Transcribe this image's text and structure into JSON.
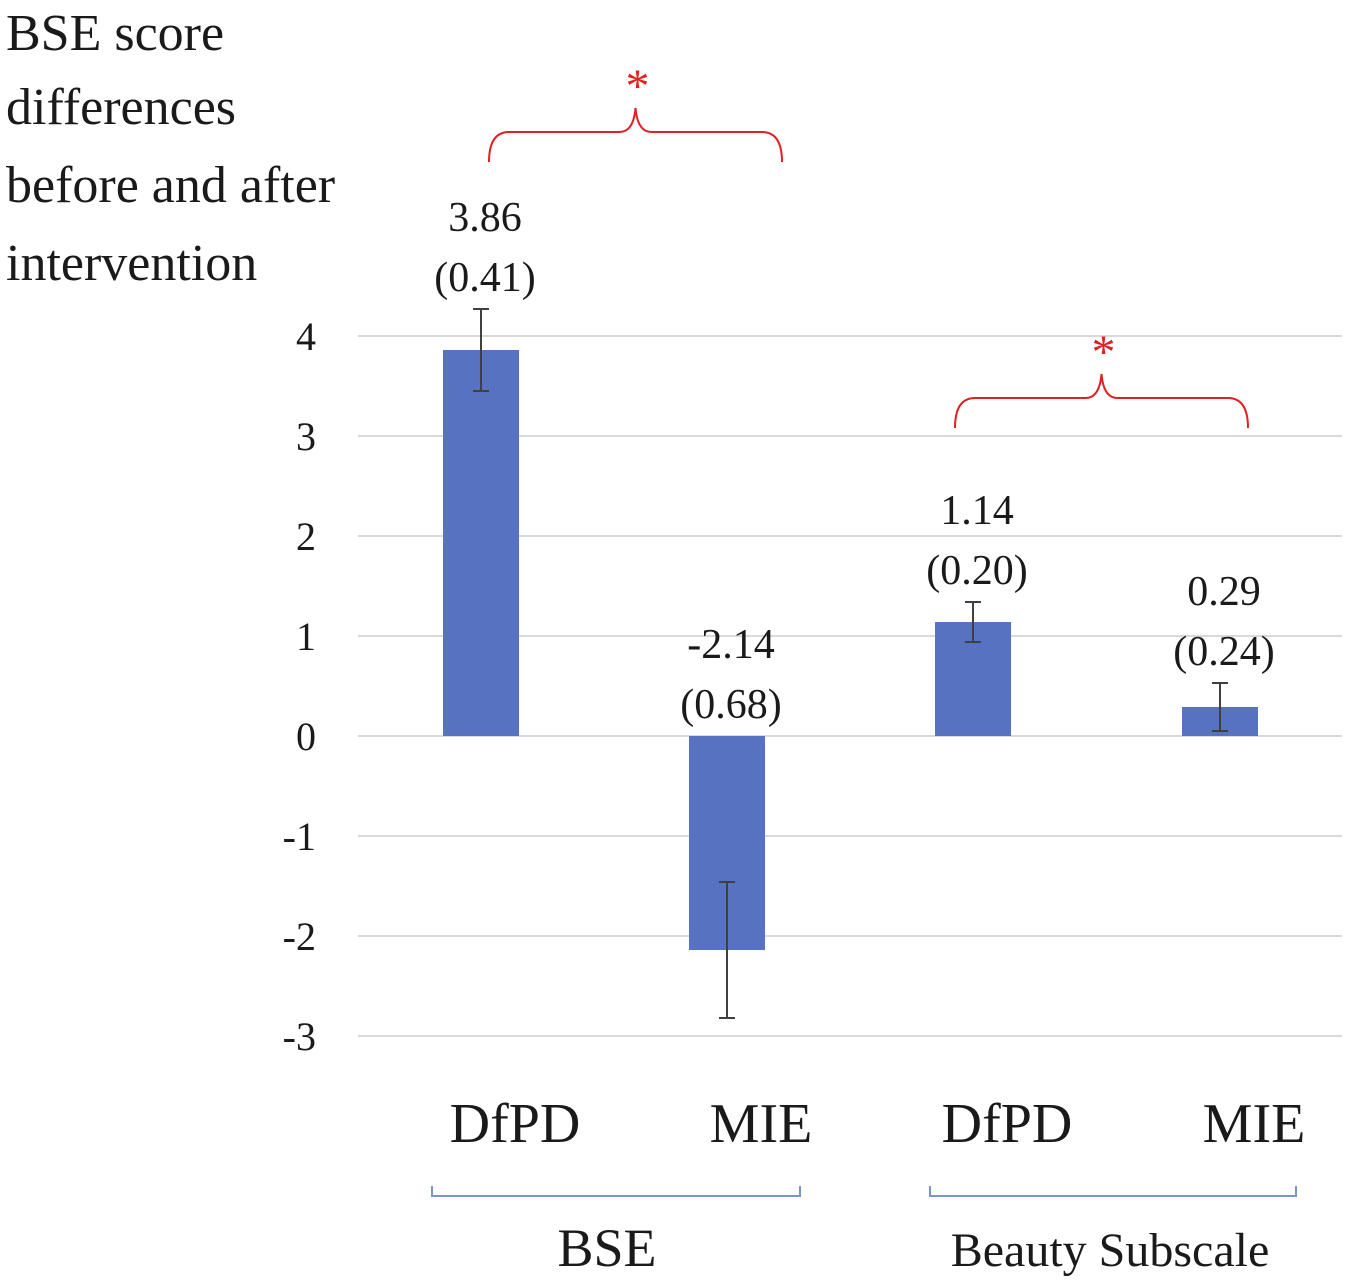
{
  "chart_data": {
    "type": "bar",
    "ylabel_lines": [
      "BSE score",
      "differences",
      "before and after",
      "intervention"
    ],
    "ylim": [
      -3,
      4
    ],
    "yticks": [
      4,
      3,
      2,
      1,
      0,
      -1,
      -2,
      -3
    ],
    "grid": true,
    "groups": [
      {
        "name": "BSE",
        "bars": [
          {
            "category": "DfPD",
            "value": 3.86,
            "error": 0.41,
            "label_value": "3.86",
            "label_se": "(0.41)"
          },
          {
            "category": "MIE",
            "value": -2.14,
            "error": 0.68,
            "label_value": "-2.14",
            "label_se": "(0.68)"
          }
        ],
        "significance": "*"
      },
      {
        "name": "Beauty Subscale",
        "bars": [
          {
            "category": "DfPD",
            "value": 1.14,
            "error": 0.2,
            "label_value": "1.14",
            "label_se": "(0.20)"
          },
          {
            "category": "MIE",
            "value": 0.29,
            "error": 0.24,
            "label_value": "0.29",
            "label_se": "(0.24)"
          }
        ],
        "significance": "*"
      }
    ],
    "colors": {
      "bar": "#5672c0",
      "error_bar": "#404040",
      "grid": "#d9d9d9",
      "significance": "#e0211f",
      "group_bracket": "#7b93cf",
      "text": "#1a1a1a"
    }
  }
}
